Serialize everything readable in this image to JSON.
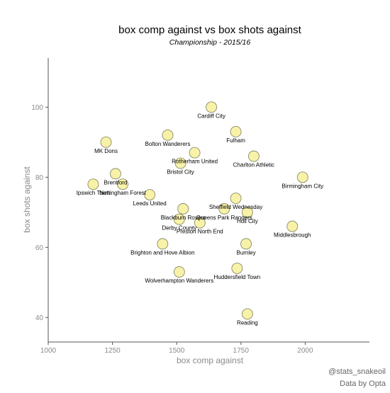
{
  "chart_data": {
    "type": "scatter",
    "title": "box comp against vs box shots against",
    "subtitle": "Championship - 2015/16",
    "xlabel": "box comp against",
    "ylabel": "box shots against",
    "xlim": [
      1000,
      2250
    ],
    "ylim": [
      33,
      114
    ],
    "xticks": [
      1000,
      1250,
      1500,
      1750,
      2000
    ],
    "yticks": [
      40,
      60,
      80,
      100
    ],
    "grid": false,
    "point_color": "#f7f2a8",
    "points": [
      {
        "label": "Cardiff City",
        "x": 1635,
        "y": 100
      },
      {
        "label": "Fulham",
        "x": 1730,
        "y": 93
      },
      {
        "label": "Bolton Wanderers",
        "x": 1465,
        "y": 92
      },
      {
        "label": "MK Dons",
        "x": 1225,
        "y": 90
      },
      {
        "label": "Rotherham United",
        "x": 1570,
        "y": 87
      },
      {
        "label": "Charlton Athletic",
        "x": 1800,
        "y": 86
      },
      {
        "label": "Bristol City",
        "x": 1515,
        "y": 84
      },
      {
        "label": "Brentford",
        "x": 1262,
        "y": 81
      },
      {
        "label": "Birmingham City",
        "x": 1990,
        "y": 80
      },
      {
        "label": "Ipswich Town",
        "x": 1175,
        "y": 78
      },
      {
        "label": "Nottingham Forest",
        "x": 1290,
        "y": 78
      },
      {
        "label": "Leeds United",
        "x": 1395,
        "y": 75
      },
      {
        "label": "Sheffield Wednesday",
        "x": 1730,
        "y": 74
      },
      {
        "label": "Blackburn Rovers",
        "x": 1525,
        "y": 71
      },
      {
        "label": "Queens Park Rangers",
        "x": 1685,
        "y": 71
      },
      {
        "label": "Hull City",
        "x": 1775,
        "y": 70
      },
      {
        "label": "Derby County",
        "x": 1510,
        "y": 68
      },
      {
        "label": "Preston North End",
        "x": 1590,
        "y": 67
      },
      {
        "label": "Middlesbrough",
        "x": 1950,
        "y": 66
      },
      {
        "label": "Brighton and Hove Albion",
        "x": 1445,
        "y": 61
      },
      {
        "label": "Burnley",
        "x": 1770,
        "y": 61
      },
      {
        "label": "Huddersfield Town",
        "x": 1735,
        "y": 54
      },
      {
        "label": "Wolverhampton Wanderers",
        "x": 1510,
        "y": 53
      },
      {
        "label": "Reading",
        "x": 1775,
        "y": 41
      }
    ]
  },
  "captions": {
    "handle": "@stats_snakeoil",
    "source": "Data by Opta"
  }
}
